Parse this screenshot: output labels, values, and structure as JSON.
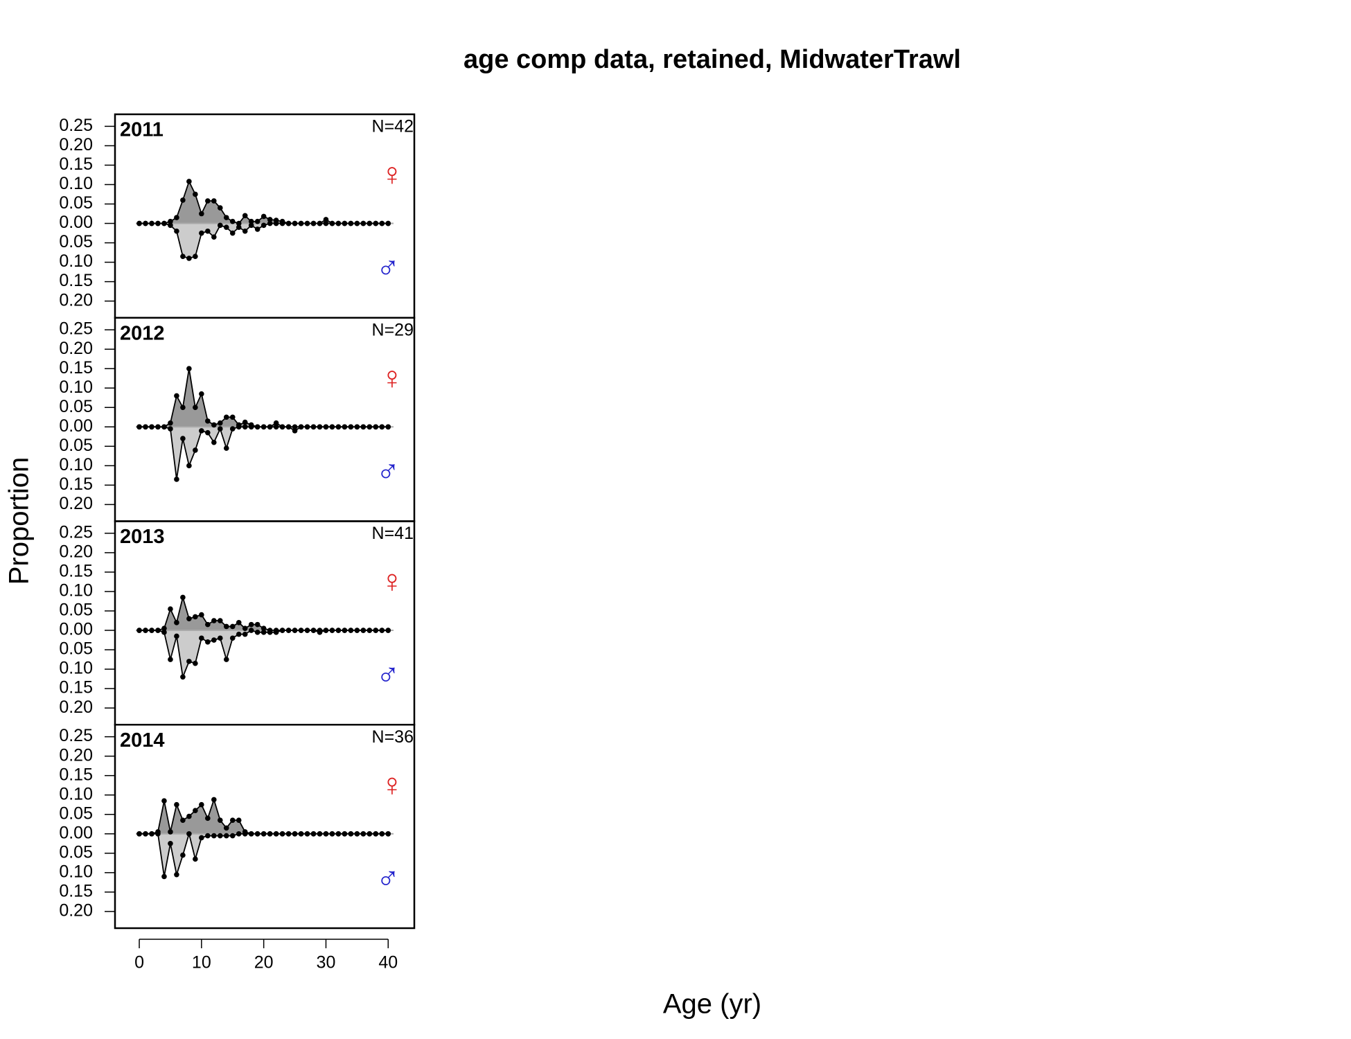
{
  "title": "age comp data, retained, MidwaterTrawl",
  "xlabel": "Age (yr)",
  "ylabel": "Proportion",
  "chart_data": [
    {
      "type": "mirror-area",
      "label": "2011",
      "annotation": "N=42",
      "x": [
        0,
        1,
        2,
        3,
        4,
        5,
        6,
        7,
        8,
        9,
        10,
        11,
        12,
        13,
        14,
        15,
        16,
        17,
        18,
        19,
        20,
        21,
        22,
        23,
        24,
        25,
        26,
        27,
        28,
        29,
        30,
        31,
        32,
        33,
        34,
        35,
        36,
        37,
        38,
        39,
        40
      ],
      "xlim": [
        -3.9,
        44.2
      ],
      "ylim": [
        -0.243,
        0.281
      ],
      "yticks": [
        {
          "value": 0.25,
          "label": "0.25"
        },
        {
          "value": 0.2,
          "label": "0.20"
        },
        {
          "value": 0.15,
          "label": "0.15"
        },
        {
          "value": 0.1,
          "label": "0.10"
        },
        {
          "value": 0.05,
          "label": "0.05"
        },
        {
          "value": 0,
          "label": "0.00"
        },
        {
          "value": -0.05,
          "label": "0.05"
        },
        {
          "value": -0.1,
          "label": "0.10"
        },
        {
          "value": -0.15,
          "label": "0.15"
        },
        {
          "value": -0.2,
          "label": "0.20"
        }
      ],
      "series": [
        {
          "name": "♀",
          "color": "#dd2222",
          "fill": "#999999",
          "values": [
            0,
            0,
            0,
            0,
            0,
            0.005,
            0.015,
            0.06,
            0.108,
            0.075,
            0.025,
            0.058,
            0.058,
            0.04,
            0.015,
            0.005,
            0,
            0.02,
            0.005,
            0.005,
            0.018,
            0.01,
            0.008,
            0.005,
            0,
            0,
            0,
            0,
            0,
            0,
            0.01,
            0,
            0,
            0,
            0,
            0,
            0,
            0,
            0,
            0,
            0
          ]
        },
        {
          "name": "♂",
          "color": "#2222cc",
          "fill": "#cccccc",
          "values": [
            0,
            0,
            0,
            0,
            0,
            -0.005,
            -0.02,
            -0.085,
            -0.09,
            -0.085,
            -0.025,
            -0.02,
            -0.035,
            -0.005,
            -0.01,
            -0.025,
            -0.01,
            -0.02,
            -0.005,
            -0.015,
            -0.005,
            0,
            0,
            0,
            0,
            0,
            0,
            0,
            0,
            0,
            0,
            0,
            0,
            0,
            0,
            0,
            0,
            0,
            0,
            0,
            0
          ]
        }
      ]
    },
    {
      "type": "mirror-area",
      "label": "2012",
      "annotation": "N=29",
      "x": [
        0,
        1,
        2,
        3,
        4,
        5,
        6,
        7,
        8,
        9,
        10,
        11,
        12,
        13,
        14,
        15,
        16,
        17,
        18,
        19,
        20,
        21,
        22,
        23,
        24,
        25,
        26,
        27,
        28,
        29,
        30,
        31,
        32,
        33,
        34,
        35,
        36,
        37,
        38,
        39,
        40
      ],
      "xlim": [
        -3.9,
        44.2
      ],
      "ylim": [
        -0.243,
        0.281
      ],
      "yticks": [
        {
          "value": 0.25,
          "label": "0.25"
        },
        {
          "value": 0.2,
          "label": "0.20"
        },
        {
          "value": 0.15,
          "label": "0.15"
        },
        {
          "value": 0.1,
          "label": "0.10"
        },
        {
          "value": 0.05,
          "label": "0.05"
        },
        {
          "value": 0,
          "label": "0.00"
        },
        {
          "value": -0.05,
          "label": "0.05"
        },
        {
          "value": -0.1,
          "label": "0.10"
        },
        {
          "value": -0.15,
          "label": "0.15"
        },
        {
          "value": -0.2,
          "label": "0.20"
        }
      ],
      "series": [
        {
          "name": "♀",
          "color": "#dd2222",
          "fill": "#999999",
          "values": [
            0,
            0,
            0,
            0,
            0,
            0.01,
            0.08,
            0.05,
            0.15,
            0.05,
            0.085,
            0.015,
            0.005,
            0.01,
            0.025,
            0.025,
            0.005,
            0.012,
            0.005,
            0,
            0,
            0,
            0.01,
            0,
            0,
            0,
            0,
            0,
            0,
            0,
            0,
            0,
            0,
            0,
            0,
            0,
            0,
            0,
            0,
            0,
            0
          ]
        },
        {
          "name": "♂",
          "color": "#2222cc",
          "fill": "#cccccc",
          "values": [
            0,
            0,
            0,
            0,
            0,
            -0.005,
            -0.135,
            -0.03,
            -0.1,
            -0.06,
            -0.01,
            -0.015,
            -0.04,
            -0.005,
            -0.055,
            -0.005,
            0,
            0,
            0,
            0,
            0,
            0,
            0,
            0,
            0,
            -0.01,
            0,
            0,
            0,
            0,
            0,
            0,
            0,
            0,
            0,
            0,
            0,
            0,
            0,
            0,
            0
          ]
        }
      ]
    },
    {
      "type": "mirror-area",
      "label": "2013",
      "annotation": "N=41",
      "x": [
        0,
        1,
        2,
        3,
        4,
        5,
        6,
        7,
        8,
        9,
        10,
        11,
        12,
        13,
        14,
        15,
        16,
        17,
        18,
        19,
        20,
        21,
        22,
        23,
        24,
        25,
        26,
        27,
        28,
        29,
        30,
        31,
        32,
        33,
        34,
        35,
        36,
        37,
        38,
        39,
        40
      ],
      "xlim": [
        -3.9,
        44.2
      ],
      "ylim": [
        -0.243,
        0.281
      ],
      "yticks": [
        {
          "value": 0.25,
          "label": "0.25"
        },
        {
          "value": 0.2,
          "label": "0.20"
        },
        {
          "value": 0.15,
          "label": "0.15"
        },
        {
          "value": 0.1,
          "label": "0.10"
        },
        {
          "value": 0.05,
          "label": "0.05"
        },
        {
          "value": 0,
          "label": "0.00"
        },
        {
          "value": -0.05,
          "label": "0.05"
        },
        {
          "value": -0.1,
          "label": "0.10"
        },
        {
          "value": -0.15,
          "label": "0.15"
        },
        {
          "value": -0.2,
          "label": "0.20"
        }
      ],
      "series": [
        {
          "name": "♀",
          "color": "#dd2222",
          "fill": "#999999",
          "values": [
            0,
            0,
            0,
            0,
            0.005,
            0.055,
            0.02,
            0.085,
            0.03,
            0.035,
            0.04,
            0.015,
            0.025,
            0.025,
            0.01,
            0.01,
            0.02,
            0.005,
            0.015,
            0.015,
            0.005,
            0,
            0,
            0,
            0,
            0,
            0,
            0,
            0,
            0,
            0,
            0,
            0,
            0,
            0,
            0,
            0,
            0,
            0,
            0,
            0
          ]
        },
        {
          "name": "♂",
          "color": "#2222cc",
          "fill": "#cccccc",
          "values": [
            0,
            0,
            0,
            0,
            -0.005,
            -0.075,
            -0.015,
            -0.12,
            -0.08,
            -0.085,
            -0.02,
            -0.03,
            -0.025,
            -0.02,
            -0.075,
            -0.02,
            -0.01,
            -0.01,
            0,
            -0.005,
            -0.005,
            -0.005,
            -0.005,
            0,
            0,
            0,
            0,
            0,
            0,
            -0.005,
            0,
            0,
            0,
            0,
            0,
            0,
            0,
            0,
            0,
            0,
            0
          ]
        }
      ]
    },
    {
      "type": "mirror-area",
      "label": "2014",
      "annotation": "N=36",
      "x": [
        0,
        1,
        2,
        3,
        4,
        5,
        6,
        7,
        8,
        9,
        10,
        11,
        12,
        13,
        14,
        15,
        16,
        17,
        18,
        19,
        20,
        21,
        22,
        23,
        24,
        25,
        26,
        27,
        28,
        29,
        30,
        31,
        32,
        33,
        34,
        35,
        36,
        37,
        38,
        39,
        40
      ],
      "xlim": [
        -3.9,
        44.2
      ],
      "ylim": [
        -0.243,
        0.281
      ],
      "xticks": [
        0,
        10,
        20,
        30,
        40
      ],
      "yticks": [
        {
          "value": 0.25,
          "label": "0.25"
        },
        {
          "value": 0.2,
          "label": "0.20"
        },
        {
          "value": 0.15,
          "label": "0.15"
        },
        {
          "value": 0.1,
          "label": "0.10"
        },
        {
          "value": 0.05,
          "label": "0.05"
        },
        {
          "value": 0,
          "label": "0.00"
        },
        {
          "value": -0.05,
          "label": "0.05"
        },
        {
          "value": -0.1,
          "label": "0.10"
        },
        {
          "value": -0.15,
          "label": "0.15"
        },
        {
          "value": -0.2,
          "label": "0.20"
        }
      ],
      "series": [
        {
          "name": "♀",
          "color": "#dd2222",
          "fill": "#999999",
          "values": [
            0,
            0,
            0,
            0.005,
            0.085,
            0.005,
            0.075,
            0.035,
            0.045,
            0.06,
            0.075,
            0.04,
            0.088,
            0.035,
            0.015,
            0.035,
            0.035,
            0.005,
            0,
            0,
            0,
            0,
            0,
            0,
            0,
            0,
            0,
            0,
            0,
            0,
            0,
            0,
            0,
            0,
            0,
            0,
            0,
            0,
            0,
            0,
            0
          ]
        },
        {
          "name": "♂",
          "color": "#2222cc",
          "fill": "#cccccc",
          "values": [
            0,
            0,
            0,
            0,
            -0.11,
            -0.025,
            -0.105,
            -0.055,
            0,
            -0.065,
            -0.01,
            -0.005,
            -0.005,
            -0.005,
            -0.005,
            -0.005,
            0,
            0,
            0,
            0,
            0,
            0,
            0,
            0,
            0,
            0,
            0,
            0,
            0,
            0,
            0,
            0,
            0,
            0,
            0,
            0,
            0,
            0,
            0,
            0,
            0
          ]
        }
      ]
    }
  ]
}
